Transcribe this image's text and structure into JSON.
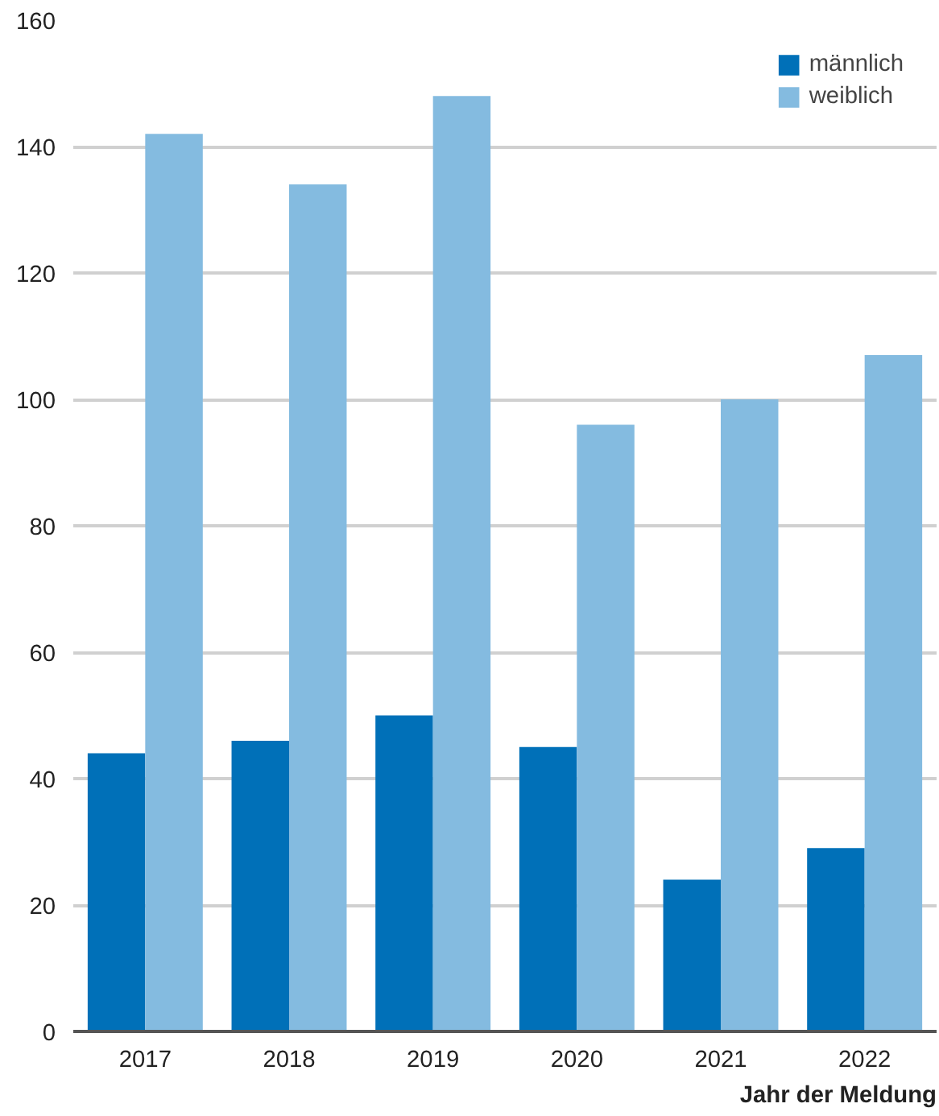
{
  "chart_data": {
    "type": "bar",
    "xlabel": "Jahr der Meldung",
    "categories": [
      "2017",
      "2018",
      "2019",
      "2020",
      "2021",
      "2022"
    ],
    "series": [
      {
        "name": "männlich",
        "color": "#0070b8",
        "values": [
          44,
          46,
          50,
          45,
          24,
          29
        ]
      },
      {
        "name": "weiblich",
        "color": "#84bbe0",
        "values": [
          142,
          134,
          148,
          96,
          100,
          107
        ]
      }
    ],
    "ylim": [
      0,
      160
    ],
    "yticks": [
      0,
      20,
      40,
      60,
      80,
      100,
      120,
      140,
      160
    ],
    "grid": "y",
    "legend": "top right"
  }
}
